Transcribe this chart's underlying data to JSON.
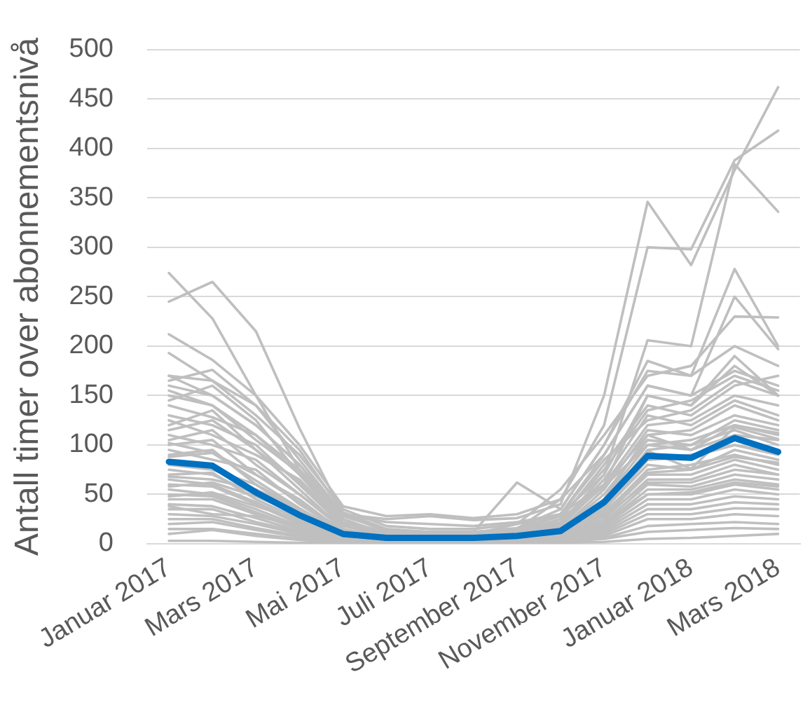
{
  "chart_data": {
    "type": "line",
    "categories": [
      "Januar 2017",
      null,
      "Mars 2017",
      null,
      "Mai 2017",
      null,
      "Juli 2017",
      null,
      "September 2017",
      null,
      "November 2017",
      null,
      "Januar 2018",
      null,
      "Mars 2018"
    ],
    "ylabel": "Antall timer over abonnementsnivå",
    "ylim": [
      0,
      500
    ],
    "yticks": [
      0,
      50,
      100,
      150,
      200,
      250,
      300,
      350,
      400,
      450,
      500
    ],
    "grid": "y",
    "marker": "none",
    "series": [
      {
        "color": "#bfbfbf",
        "values": [
          274,
          228,
          150,
          75,
          30,
          22,
          20,
          18,
          22,
          30,
          60,
          150,
          140,
          190,
          150
        ]
      },
      {
        "color": "#bfbfbf",
        "values": [
          245,
          265,
          215,
          117,
          30,
          25,
          28,
          24,
          26,
          40,
          150,
          346,
          282,
          378,
          462
        ]
      },
      {
        "color": "#bfbfbf",
        "values": [
          212,
          186,
          150,
          100,
          38,
          28,
          30,
          26,
          30,
          45,
          120,
          300,
          298,
          388,
          418
        ]
      },
      {
        "color": "#bfbfbf",
        "values": [
          193,
          165,
          130,
          90,
          35,
          18,
          15,
          15,
          20,
          30,
          70,
          206,
          200,
          384,
          336
        ]
      },
      {
        "color": "#bfbfbf",
        "values": [
          165,
          176,
          140,
          85,
          30,
          14,
          12,
          12,
          62,
          35,
          100,
          175,
          170,
          278,
          200
        ]
      },
      {
        "color": "#bfbfbf",
        "values": [
          170,
          150,
          120,
          80,
          30,
          12,
          10,
          10,
          20,
          55,
          110,
          170,
          180,
          230,
          229
        ]
      },
      {
        "color": "#bfbfbf",
        "values": [
          150,
          140,
          110,
          70,
          25,
          10,
          8,
          8,
          15,
          45,
          90,
          160,
          150,
          250,
          197
        ]
      },
      {
        "color": "#bfbfbf",
        "values": [
          160,
          150,
          120,
          80,
          25,
          10,
          8,
          8,
          12,
          30,
          90,
          160,
          150,
          175,
          160
        ]
      },
      {
        "color": "#bfbfbf",
        "values": [
          145,
          160,
          125,
          70,
          20,
          8,
          6,
          6,
          10,
          25,
          80,
          140,
          130,
          160,
          170
        ]
      },
      {
        "color": "#bfbfbf",
        "values": [
          130,
          120,
          100,
          60,
          18,
          8,
          7,
          7,
          9,
          20,
          70,
          150,
          140,
          180,
          150
        ]
      },
      {
        "color": "#bfbfbf",
        "values": [
          120,
          135,
          95,
          55,
          15,
          6,
          6,
          6,
          8,
          18,
          60,
          120,
          125,
          150,
          140
        ]
      },
      {
        "color": "#bfbfbf",
        "values": [
          110,
          100,
          85,
          50,
          15,
          6,
          5,
          5,
          8,
          15,
          55,
          115,
          110,
          130,
          120
        ]
      },
      {
        "color": "#bfbfbf",
        "values": [
          100,
          105,
          70,
          45,
          12,
          5,
          5,
          5,
          7,
          14,
          50,
          105,
          100,
          125,
          115
        ]
      },
      {
        "color": "#bfbfbf",
        "values": [
          95,
          85,
          75,
          40,
          12,
          5,
          4,
          4,
          6,
          12,
          45,
          100,
          95,
          110,
          105
        ]
      },
      {
        "color": "#bfbfbf",
        "values": [
          90,
          95,
          60,
          35,
          10,
          5,
          4,
          4,
          6,
          12,
          40,
          95,
          100,
          115,
          100
        ]
      },
      {
        "color": "#bfbfbf",
        "values": [
          102,
          92,
          64,
          36,
          11,
          4,
          4,
          4,
          5,
          11,
          36,
          94,
          76,
          118,
          106
        ]
      },
      {
        "color": "#bfbfbf",
        "values": [
          80,
          75,
          60,
          32,
          9,
          4,
          3,
          3,
          5,
          10,
          35,
          85,
          90,
          100,
          90
        ]
      },
      {
        "color": "#bfbfbf",
        "values": [
          75,
          70,
          50,
          28,
          8,
          4,
          3,
          3,
          5,
          9,
          35,
          80,
          75,
          95,
          85
        ]
      },
      {
        "color": "#bfbfbf",
        "values": [
          70,
          72,
          45,
          25,
          8,
          3,
          3,
          3,
          4,
          8,
          30,
          75,
          80,
          90,
          80
        ]
      },
      {
        "color": "#bfbfbf",
        "values": [
          65,
          60,
          42,
          22,
          7,
          3,
          3,
          3,
          4,
          8,
          28,
          70,
          70,
          85,
          75
        ]
      },
      {
        "color": "#bfbfbf",
        "values": [
          60,
          58,
          40,
          20,
          6,
          3,
          2,
          2,
          4,
          7,
          25,
          65,
          65,
          80,
          70
        ]
      },
      {
        "color": "#bfbfbf",
        "values": [
          55,
          50,
          35,
          18,
          6,
          3,
          2,
          2,
          3,
          6,
          22,
          60,
          58,
          70,
          65
        ]
      },
      {
        "color": "#bfbfbf",
        "values": [
          50,
          48,
          32,
          16,
          5,
          2,
          2,
          2,
          3,
          6,
          20,
          55,
          55,
          65,
          60
        ]
      },
      {
        "color": "#bfbfbf",
        "values": [
          45,
          45,
          30,
          15,
          5,
          2,
          2,
          2,
          3,
          5,
          18,
          50,
          50,
          60,
          55
        ]
      },
      {
        "color": "#bfbfbf",
        "values": [
          40,
          38,
          26,
          13,
          4,
          2,
          2,
          2,
          3,
          5,
          16,
          45,
          45,
          55,
          50
        ]
      },
      {
        "color": "#bfbfbf",
        "values": [
          35,
          35,
          22,
          12,
          4,
          2,
          1,
          1,
          2,
          4,
          14,
          40,
          40,
          48,
          45
        ]
      },
      {
        "color": "#bfbfbf",
        "values": [
          30,
          28,
          20,
          10,
          3,
          1,
          1,
          1,
          2,
          4,
          12,
          35,
          35,
          42,
          40
        ]
      },
      {
        "color": "#bfbfbf",
        "values": [
          25,
          25,
          16,
          8,
          3,
          1,
          1,
          1,
          2,
          3,
          10,
          30,
          30,
          36,
          35
        ]
      },
      {
        "color": "#bfbfbf",
        "values": [
          20,
          22,
          14,
          7,
          2,
          1,
          1,
          1,
          1,
          3,
          8,
          25,
          25,
          30,
          28
        ]
      },
      {
        "color": "#bfbfbf",
        "values": [
          15,
          15,
          10,
          5,
          2,
          1,
          1,
          1,
          1,
          2,
          6,
          18,
          20,
          22,
          20
        ]
      },
      {
        "color": "#bfbfbf",
        "values": [
          10,
          14,
          8,
          4,
          1,
          1,
          1,
          1,
          1,
          2,
          5,
          12,
          14,
          16,
          15
        ]
      },
      {
        "color": "#bfbfbf",
        "values": [
          3,
          3,
          2,
          1,
          1,
          0,
          0,
          0,
          0,
          1,
          2,
          5,
          6,
          8,
          10
        ]
      },
      {
        "color": "#bfbfbf",
        "values": [
          125,
          110,
          90,
          65,
          20,
          10,
          8,
          8,
          10,
          20,
          65,
          130,
          120,
          145,
          130
        ]
      },
      {
        "color": "#bfbfbf",
        "values": [
          105,
          115,
          80,
          50,
          18,
          12,
          10,
          10,
          12,
          25,
          60,
          110,
          115,
          140,
          125
        ]
      },
      {
        "color": "#bfbfbf",
        "values": [
          155,
          140,
          105,
          72,
          28,
          14,
          12,
          12,
          15,
          30,
          85,
          125,
          135,
          165,
          150
        ]
      },
      {
        "color": "#bfbfbf",
        "values": [
          140,
          128,
          110,
          75,
          22,
          12,
          10,
          10,
          14,
          28,
          75,
          135,
          145,
          170,
          155
        ]
      },
      {
        "color": "#bfbfbf",
        "values": [
          115,
          125,
          95,
          62,
          20,
          10,
          9,
          9,
          11,
          22,
          58,
          100,
          105,
          120,
          110
        ]
      },
      {
        "color": "#bfbfbf",
        "values": [
          88,
          92,
          70,
          42,
          14,
          8,
          7,
          7,
          9,
          16,
          45,
          110,
          95,
          120,
          112
        ]
      },
      {
        "color": "#bfbfbf",
        "values": [
          68,
          65,
          55,
          35,
          12,
          7,
          6,
          6,
          8,
          14,
          38,
          85,
          88,
          100,
          92
        ]
      },
      {
        "color": "#bfbfbf",
        "values": [
          58,
          62,
          48,
          30,
          10,
          6,
          5,
          5,
          7,
          12,
          32,
          72,
          75,
          88,
          82
        ]
      },
      {
        "color": "#bfbfbf",
        "values": [
          48,
          52,
          38,
          24,
          8,
          5,
          4,
          4,
          6,
          10,
          28,
          62,
          62,
          75,
          70
        ]
      },
      {
        "color": "#bfbfbf",
        "values": [
          38,
          30,
          28,
          18,
          6,
          4,
          3,
          3,
          5,
          8,
          22,
          50,
          52,
          62,
          58
        ]
      },
      {
        "color": "#bfbfbf",
        "values": [
          170,
          165,
          140,
          95,
          32,
          15,
          12,
          12,
          16,
          35,
          100,
          185,
          170,
          200,
          180
        ]
      },
      {
        "color": "#0070c0",
        "values": [
          83,
          79,
          52,
          29,
          10,
          6,
          6,
          6,
          8,
          13,
          42,
          89,
          87,
          107,
          93
        ]
      }
    ]
  }
}
